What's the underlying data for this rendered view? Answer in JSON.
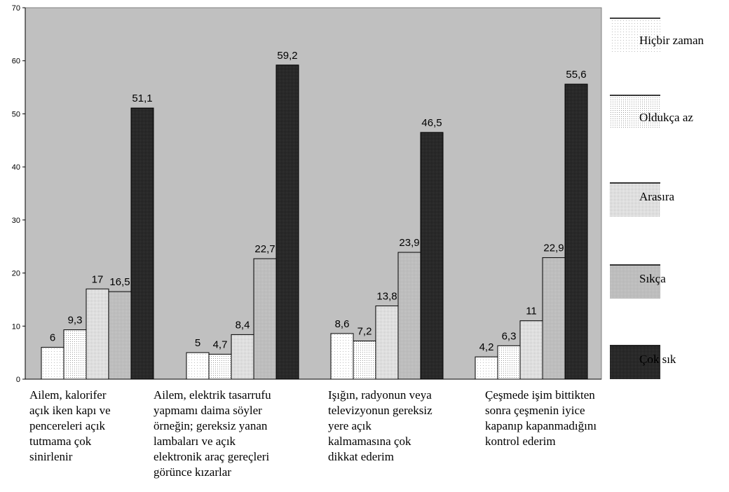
{
  "chart_data": {
    "type": "bar",
    "categories": [
      [
        "Ailem, kalorifer",
        "açık iken kapı ve",
        "pencereleri açık",
        "tutmama çok",
        "sinirlenir"
      ],
      [
        "Ailem, elektrik tasarrufu",
        "yapmamı daima söyler",
        "örneğin; gereksiz yanan",
        "lambaları ve açık",
        "elektronik araç gereçleri",
        "görünce kızarlar"
      ],
      [
        "Işığın, radyonun veya",
        "televizyonun gereksiz",
        "yere açık",
        "kalmamasına çok",
        "dikkat ederim"
      ],
      [
        "Çeşmede işim bittikten",
        "sonra çeşmenin iyice",
        "kapanıp kapanmadığını",
        "kontrol ederim"
      ]
    ],
    "series": [
      {
        "name": "Hiçbir zaman",
        "values": [
          6,
          5,
          8.6,
          4.2
        ],
        "labels": [
          "6",
          "5",
          "8,6",
          "4,2"
        ],
        "color": "#ffffff"
      },
      {
        "name": "Oldukça az",
        "values": [
          9.3,
          4.7,
          7.2,
          6.3
        ],
        "labels": [
          "9,3",
          "4,7",
          "7,2",
          "6,3"
        ],
        "color": "#f4f4f4"
      },
      {
        "name": "Arasıra",
        "values": [
          17,
          8.4,
          13.8,
          11
        ],
        "labels": [
          "17",
          "8,4",
          "13,8",
          "11"
        ],
        "color": "#e6e6e6"
      },
      {
        "name": "Sıkça",
        "values": [
          16.5,
          22.7,
          23.9,
          22.9
        ],
        "labels": [
          "16,5",
          "22,7",
          "23,9",
          "22,9"
        ],
        "color": "#c4c4c4"
      },
      {
        "name": "Çok sık",
        "values": [
          51.1,
          59.2,
          46.5,
          55.6
        ],
        "labels": [
          "51,1",
          "59,2",
          "46,5",
          "55,6"
        ],
        "color": "#333333"
      }
    ],
    "y_ticks": [
      0,
      10,
      20,
      30,
      40,
      50,
      60,
      70
    ],
    "ylim": [
      0,
      70
    ],
    "grid": false,
    "legend_position": "right",
    "plot_background": "#c0c0c0"
  }
}
